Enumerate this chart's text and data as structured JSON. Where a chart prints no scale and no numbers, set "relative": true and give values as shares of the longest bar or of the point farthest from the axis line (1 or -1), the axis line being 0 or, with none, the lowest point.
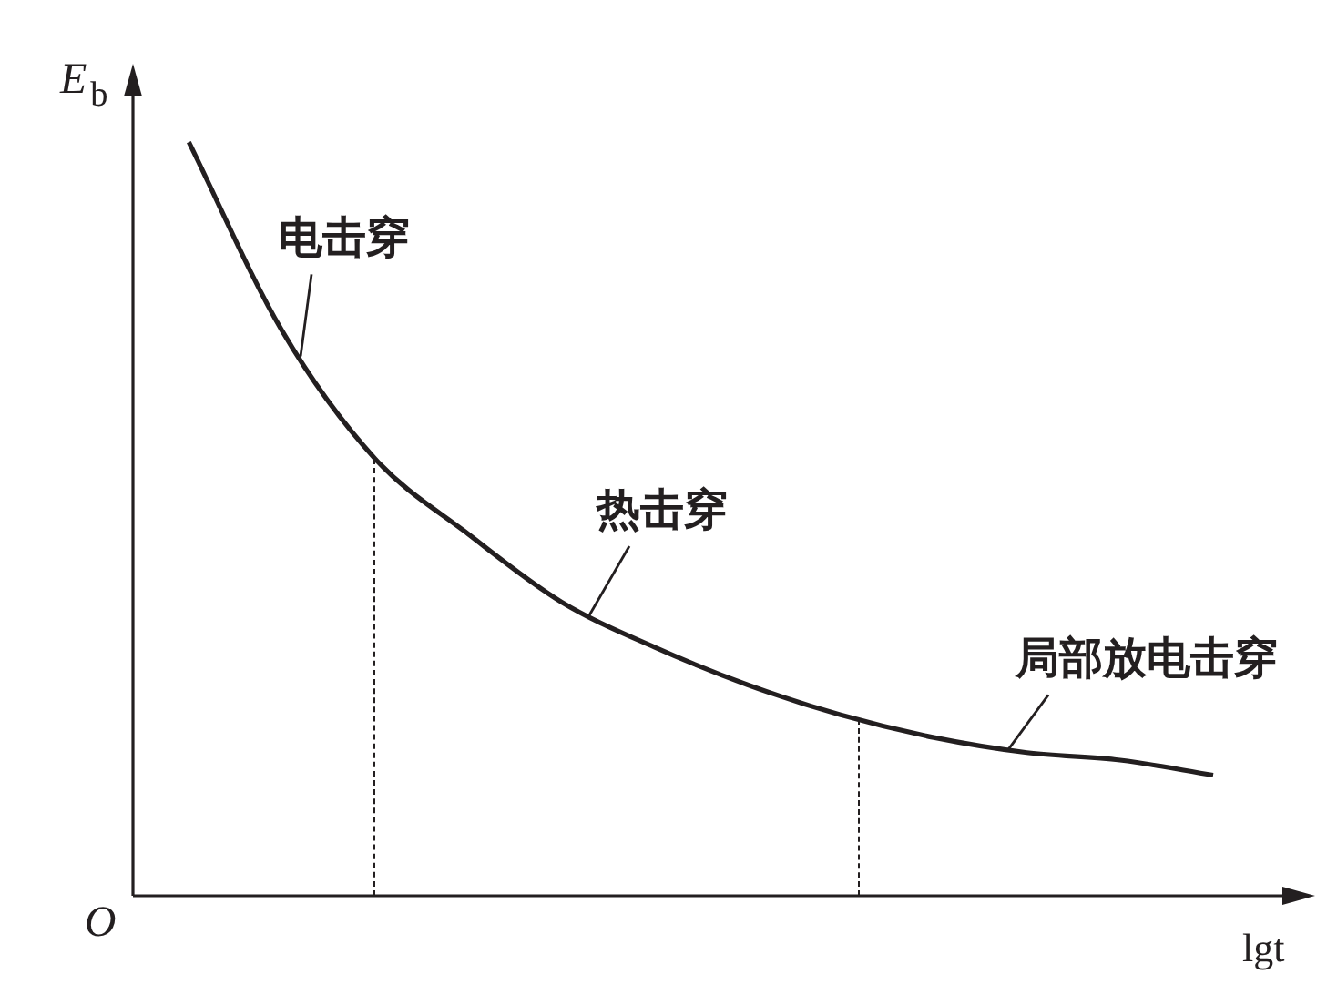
{
  "chart_data": {
    "type": "line",
    "relative": true,
    "xlabel": "lgt",
    "ylabel": "E$_{b}$",
    "annotations": [
      "电击穿",
      "热击穿",
      "局部放电击穿",
      "O"
    ],
    "categories": [
      null,
      null,
      null,
      null,
      null,
      null,
      null,
      null,
      null,
      null,
      null,
      null
    ],
    "series": [
      {
        "color": "#231f20",
        "values": [
          1,
          0.75,
          0.58,
          0.48,
          0.39,
          0.33,
          0.28,
          0.24,
          0.21,
          0.19,
          0.18,
          0.16
        ]
      }
    ],
    "marker": "none",
    "line_style": "solid",
    "legend": false
  }
}
